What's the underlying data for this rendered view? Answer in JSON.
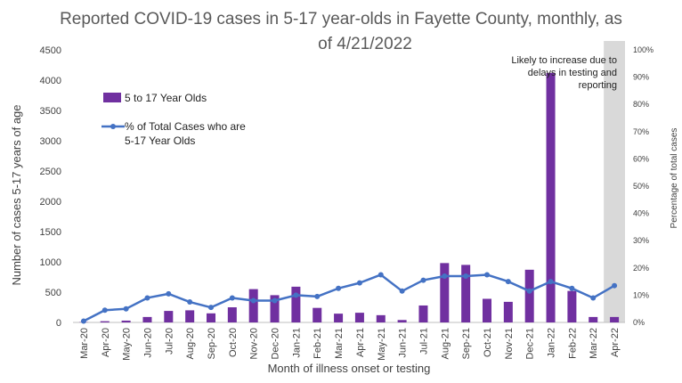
{
  "chart_data": {
    "type": "bar",
    "title_lines": [
      "Reported COVID-19 cases in 5-17 year-olds in Fayette County, monthly, as",
      "of 4/21/2022"
    ],
    "xlabel": "Month of illness onset or testing",
    "ylabel": "Number of cases 5-17 years of age",
    "y2label": "Percentage of total cases",
    "ylim": [
      0,
      4500
    ],
    "yticks": [
      0,
      500,
      1000,
      1500,
      2000,
      2500,
      3000,
      3500,
      4000,
      4500
    ],
    "y2lim": [
      0,
      100
    ],
    "y2ticks": [
      "0%",
      "10%",
      "20%",
      "30%",
      "40%",
      "50%",
      "60%",
      "70%",
      "80%",
      "90%",
      "100%"
    ],
    "categories": [
      "Mar-20",
      "Apr-20",
      "May-20",
      "Jun-20",
      "Jul-20",
      "Aug-20",
      "Sep-20",
      "Oct-20",
      "Nov-20",
      "Dec-20",
      "Jan-21",
      "Feb-21",
      "Mar-21",
      "Apr-21",
      "May-21",
      "Jun-21",
      "Jul-21",
      "Aug-21",
      "Sep-21",
      "Oct-21",
      "Nov-21",
      "Dec-21",
      "Jan-22",
      "Feb-22",
      "Mar-22",
      "Apr-22"
    ],
    "series": [
      {
        "name": "5 to 17 Year Olds",
        "type": "bar",
        "axis": "left",
        "color": "#7030A0",
        "values": [
          5,
          20,
          30,
          90,
          190,
          200,
          150,
          250,
          550,
          450,
          590,
          240,
          145,
          160,
          120,
          40,
          280,
          980,
          950,
          390,
          340,
          870,
          4120,
          520,
          90,
          90
        ]
      },
      {
        "name": "% of Total Cases who are 5-17 Year Olds",
        "legend_lines": [
          "% of Total Cases who are",
          "5-17 Year Olds"
        ],
        "type": "line",
        "axis": "right",
        "color": "#4472C4",
        "values": [
          0.5,
          4.5,
          5,
          9,
          10.5,
          7.5,
          5.5,
          9,
          8,
          8,
          10,
          9.5,
          12.5,
          14.5,
          17.5,
          11.5,
          15.5,
          17,
          17,
          17.5,
          15,
          11.5,
          15,
          12.5,
          9,
          13.5
        ]
      }
    ],
    "shaded_category": "Apr-22",
    "shade_color": "#D9D9D9",
    "annotation_lines": [
      "Likely to increase due to",
      "delays in testing and",
      "reporting"
    ],
    "grid": false,
    "legend_position": "top-left"
  }
}
